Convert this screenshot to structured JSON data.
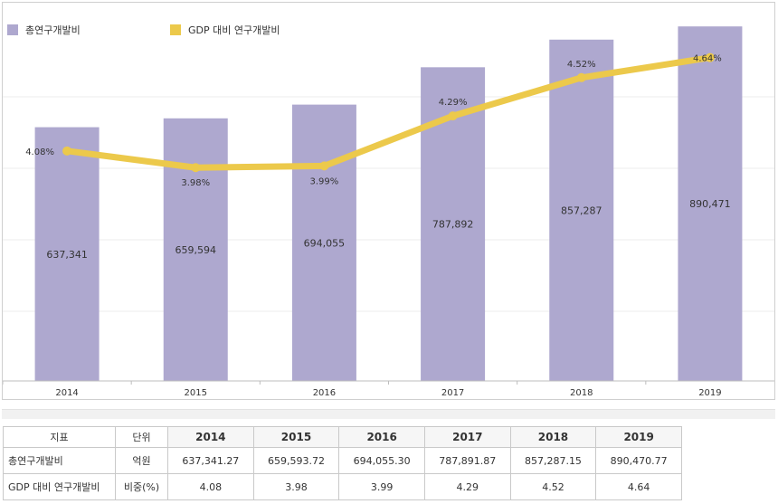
{
  "legend": {
    "bar_label": "총연구개발비",
    "line_label": "GDP 대비 연구개발비"
  },
  "colors": {
    "bar": "#aea8cf",
    "line": "#ecc94b",
    "grid": "#ececec",
    "axis": "#bdbdbd"
  },
  "chart_data": {
    "type": "bar",
    "categories": [
      "2014",
      "2015",
      "2016",
      "2017",
      "2018",
      "2019"
    ],
    "series": [
      {
        "name": "총연구개발비",
        "type": "bar",
        "values": [
          637341,
          659594,
          694055,
          787892,
          857287,
          890471
        ],
        "labels": [
          "637,341",
          "659,594",
          "694,055",
          "787,892",
          "857,287",
          "890,471"
        ]
      },
      {
        "name": "GDP 대비 연구개발비",
        "type": "line",
        "values": [
          4.08,
          3.98,
          3.99,
          4.29,
          4.52,
          4.64
        ],
        "labels": [
          "4.08%",
          "3.98%",
          "3.99%",
          "4.29%",
          "4.52%",
          "4.64%"
        ]
      }
    ],
    "ylim_bar": [
      0,
      900000
    ],
    "ylim_line": [
      2.7,
      4.85
    ],
    "grid": true,
    "legend_position": "top-left"
  },
  "table": {
    "headers": [
      "지표",
      "단위",
      "2014",
      "2015",
      "2016",
      "2017",
      "2018",
      "2019"
    ],
    "rows": [
      {
        "name": "총연구개발비",
        "unit": "억원",
        "values": [
          "637,341.27",
          "659,593.72",
          "694,055.30",
          "787,891.87",
          "857,287.15",
          "890,470.77"
        ]
      },
      {
        "name": "GDP 대비 연구개발비",
        "unit": "비중(%)",
        "values": [
          "4.08",
          "3.98",
          "3.99",
          "4.29",
          "4.52",
          "4.64"
        ]
      }
    ]
  }
}
